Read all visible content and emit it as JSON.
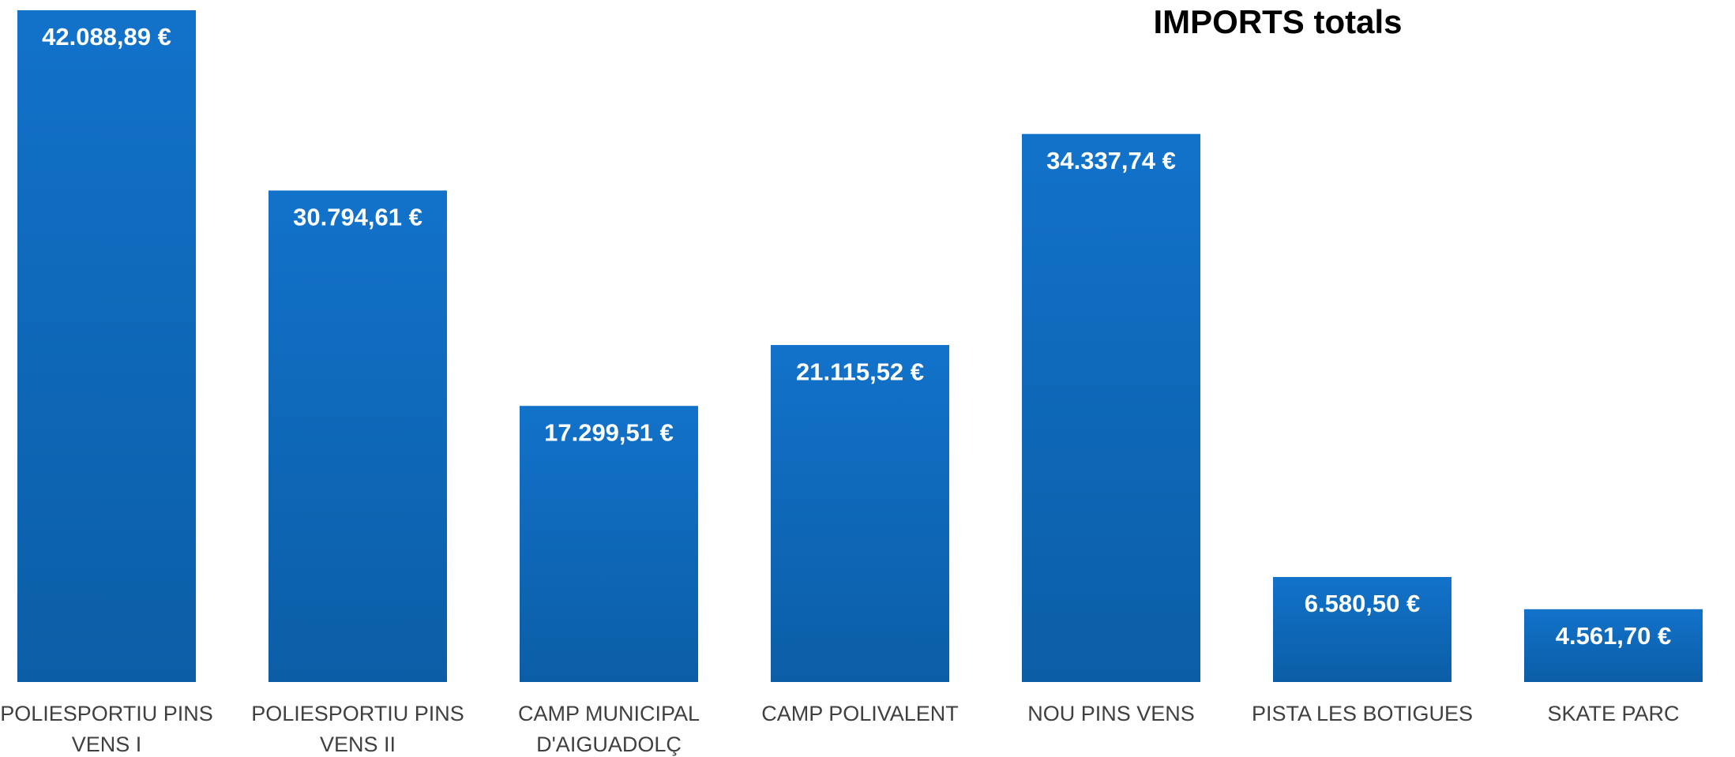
{
  "chart_data": {
    "type": "bar",
    "title": "IMPORTS totals",
    "categories": [
      "POLIESPORTIU PINS VENS I",
      "POLIESPORTIU PINS VENS II",
      "CAMP MUNICIPAL D'AIGUADOLÇ",
      "CAMP POLIVALENT",
      "NOU PINS VENS",
      "PISTA LES BOTIGUES",
      "SKATE PARC"
    ],
    "values": [
      42088.89,
      30794.61,
      17299.51,
      21115.52,
      34337.74,
      6580.5,
      4561.7
    ],
    "value_labels": [
      "42.088,89 €",
      "30.794,61 €",
      "17.299,51 €",
      "21.115,52 €",
      "34.337,74 €",
      "6.580,50 €",
      "4.561,70 €"
    ],
    "color": "#0f6bbf"
  }
}
